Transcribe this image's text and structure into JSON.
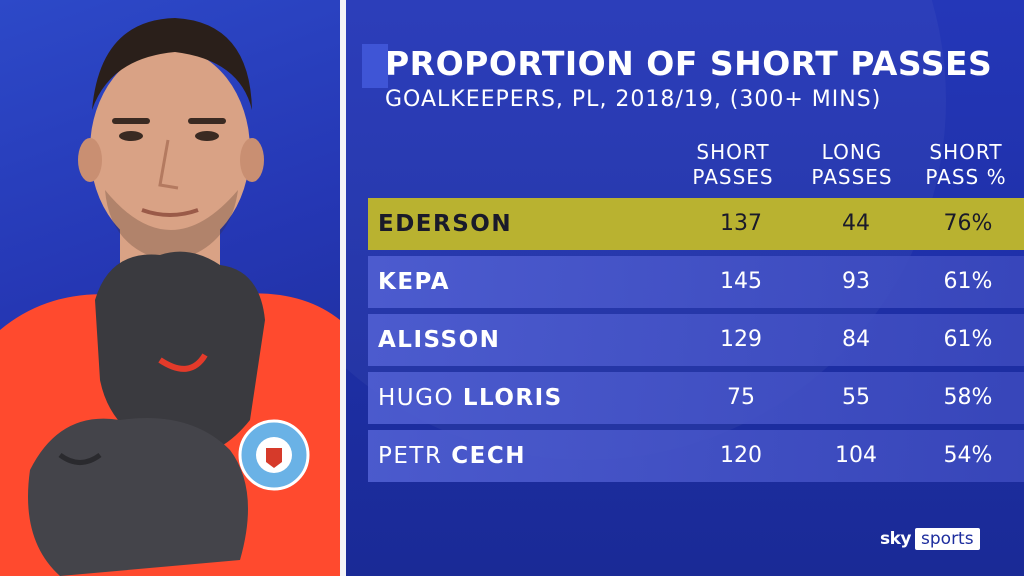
{
  "header": {
    "title": "PROPORTION OF SHORT PASSES",
    "subtitle": "GOALKEEPERS, PL, 2018/19, (300+ MINS)"
  },
  "columns": [
    {
      "line1": "SHORT",
      "line2": "PASSES"
    },
    {
      "line1": "LONG",
      "line2": "PASSES"
    },
    {
      "line1": "SHORT",
      "line2": "PASS %"
    }
  ],
  "rows": [
    {
      "first": "",
      "last": "EDERSON",
      "short": "137",
      "long": "44",
      "pct": "76%"
    },
    {
      "first": "",
      "last": "KEPA",
      "short": "145",
      "long": "93",
      "pct": "61%"
    },
    {
      "first": "",
      "last": "ALISSON",
      "short": "129",
      "long": "84",
      "pct": "61%"
    },
    {
      "first": "HUGO",
      "last": "LLORIS",
      "short": "75",
      "long": "55",
      "pct": "58%"
    },
    {
      "first": "PETR",
      "last": "CECH",
      "short": "120",
      "long": "104",
      "pct": "54%"
    }
  ],
  "logo": {
    "part1": "sky",
    "part2": "sports"
  },
  "colors": {
    "background": "#1d2d9e",
    "highlight": "#b9b230",
    "row": "#4a5bd0",
    "jersey": "#ff4a2e",
    "gloves": "#3a3a3f"
  },
  "chart_data": {
    "type": "table",
    "title": "PROPORTION OF SHORT PASSES",
    "subtitle": "GOALKEEPERS, PL, 2018/19, (300+ MINS)",
    "columns": [
      "SHORT PASSES",
      "LONG PASSES",
      "SHORT PASS %"
    ],
    "categories": [
      "EDERSON",
      "KEPA",
      "ALISSON",
      "HUGO LLORIS",
      "PETR CECH"
    ],
    "series": [
      {
        "name": "SHORT PASSES",
        "values": [
          137,
          145,
          129,
          75,
          120
        ]
      },
      {
        "name": "LONG PASSES",
        "values": [
          44,
          93,
          84,
          55,
          104
        ]
      },
      {
        "name": "SHORT PASS %",
        "values": [
          76,
          61,
          61,
          58,
          54
        ]
      }
    ],
    "highlighted": "EDERSON"
  }
}
